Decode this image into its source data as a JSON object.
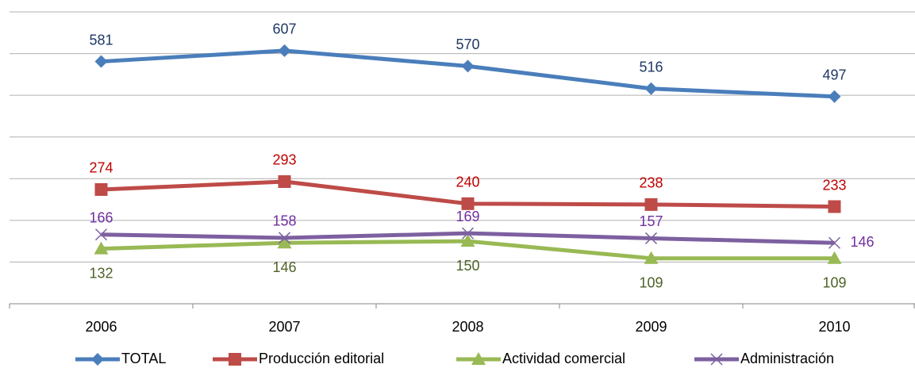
{
  "chart_data": {
    "type": "line",
    "categories": [
      "2006",
      "2007",
      "2008",
      "2009",
      "2010"
    ],
    "series": [
      {
        "name": "TOTAL",
        "color": "#4a7ebb",
        "label_color": "#1f3864",
        "values": [
          581,
          607,
          570,
          516,
          497
        ]
      },
      {
        "name": "Producción editorial",
        "color": "#be4b48",
        "label_color": "#c00000",
        "values": [
          274,
          293,
          240,
          238,
          233
        ]
      },
      {
        "name": "Actividad comercial",
        "color": "#98b954",
        "label_color": "#4f6228",
        "values": [
          132,
          146,
          150,
          109,
          109
        ]
      },
      {
        "name": "Administración",
        "color": "#7d60a0",
        "label_color": "#7030a0",
        "values": [
          166,
          158,
          169,
          157,
          146
        ]
      }
    ],
    "ylim": [
      0,
      700
    ],
    "yticks": [
      0,
      100,
      200,
      300,
      400,
      500,
      600,
      700
    ],
    "grid": true,
    "legend": "bottom"
  }
}
